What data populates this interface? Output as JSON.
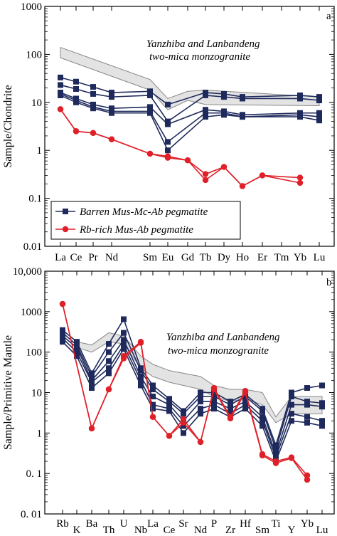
{
  "colors": {
    "barren": "#1f2a5c",
    "rb_rich": "#e02028",
    "field_fill": "#e3e3e3",
    "field_edge": "#888888"
  },
  "chart_data": [
    {
      "type": "line",
      "panel": "a",
      "scale": "log",
      "ylabel": "Sample/Chondrite",
      "ylim": [
        0.01,
        1000
      ],
      "yticks": [
        "0.01",
        "0.1",
        "1",
        "10",
        "100",
        "1000"
      ],
      "categories": [
        "La",
        "Ce",
        "Pr",
        "Nd",
        "Sm",
        "Eu",
        "Gd",
        "Tb",
        "Dy",
        "Ho",
        "Er",
        "Tm",
        "Yb",
        "Lu"
      ],
      "annotation": [
        "Yanzhiba  and Lanbandeng",
        "two-mica monzogranite"
      ],
      "legend": [
        {
          "name": "Barren Mus-Mc-Ab  pegmatite",
          "group": "barren"
        },
        {
          "name": "Rb-rich Mus-Ab pegmatite",
          "group": "rb_rich"
        }
      ],
      "field": {
        "x": [
          "La",
          "Sm",
          "Eu",
          "Gd",
          "Tb",
          "Lu"
        ],
        "upper": [
          140,
          30,
          12,
          17,
          18,
          13
        ],
        "lower": [
          85,
          18,
          7,
          11,
          9,
          8.5
        ]
      },
      "series": [
        {
          "group": "barren",
          "x": [
            "La",
            "Ce",
            "Pr",
            "Nd",
            "Sm",
            "Eu",
            "Tb",
            "Dy",
            "Ho",
            "Yb",
            "Lu"
          ],
          "values": [
            33,
            27,
            21,
            16,
            17,
            9,
            16,
            15,
            13,
            14,
            13
          ]
        },
        {
          "group": "barren",
          "x": [
            "La",
            "Ce",
            "Pr",
            "Nd",
            "Sm",
            "Eu",
            "Tb",
            "Dy",
            "Ho",
            "Yb",
            "Lu"
          ],
          "values": [
            23,
            19,
            15,
            13,
            14,
            4,
            14,
            13,
            12,
            12,
            11
          ]
        },
        {
          "group": "barren",
          "x": [
            "La",
            "Ce",
            "Pr",
            "Nd",
            "Sm",
            "Eu",
            "Tb",
            "Dy",
            "Ho",
            "Yb",
            "Lu"
          ],
          "values": [
            16,
            12,
            9,
            7.5,
            8,
            3.5,
            7,
            6.5,
            5.5,
            6,
            6
          ]
        },
        {
          "group": "barren",
          "x": [
            "La",
            "Ce",
            "Pr",
            "Nd",
            "Sm",
            "Eu",
            "Tb",
            "Dy",
            "Ho",
            "Yb",
            "Lu"
          ],
          "values": [
            15,
            11,
            8,
            6.5,
            6.5,
            1.5,
            6,
            6,
            5,
            5.5,
            5
          ]
        },
        {
          "group": "barren",
          "x": [
            "La",
            "Ce",
            "Pr",
            "Nd",
            "Sm",
            "Eu",
            "Tb",
            "Dy",
            "Ho",
            "Yb",
            "Lu"
          ],
          "values": [
            14,
            10,
            7.5,
            6,
            6,
            1,
            5,
            5.5,
            5,
            5,
            4.2
          ]
        },
        {
          "group": "rb_rich",
          "x": [
            "La",
            "Ce",
            "Pr",
            "Nd",
            "Sm",
            "Eu",
            "Gd",
            "Tb",
            "Dy",
            "Ho",
            "Er",
            "Yb"
          ],
          "values": [
            7.2,
            2.5,
            2.3,
            1.7,
            0.85,
            0.75,
            0.62,
            0.32,
            0.45,
            0.18,
            0.3,
            0.27
          ]
        },
        {
          "group": "rb_rich",
          "x": [
            "La",
            "Ce",
            "Pr",
            "Nd",
            "Sm",
            "Eu",
            "Gd",
            "Tb",
            "Dy",
            "Ho",
            "Er",
            "Yb"
          ],
          "values": [
            7.2,
            2.5,
            2.3,
            1.7,
            0.85,
            0.7,
            0.62,
            0.24,
            0.45,
            0.18,
            0.3,
            0.21
          ]
        }
      ]
    },
    {
      "type": "line",
      "panel": "b",
      "scale": "log",
      "ylabel": "Sample/Primitive Mantle",
      "ylim": [
        0.01,
        10000
      ],
      "yticks": [
        "0. 01",
        "0. 1",
        "1",
        "10",
        "100",
        "1000",
        "10,000"
      ],
      "categories": [
        "Rb",
        "K",
        "Ba",
        "Th",
        "U",
        "Nb",
        "La",
        "Ce",
        "Sr",
        "Nd",
        "P",
        "Zr",
        "Hf",
        "Sm",
        "Ti",
        "Y",
        "Yb",
        "Lu"
      ],
      "annotation": [
        "Yanzhiba  and Lanbandeng",
        "two-mica monzogranite"
      ],
      "field": {
        "x": [
          "K",
          "Ba",
          "Th",
          "U",
          "Nb",
          "La",
          "Ce",
          "Sr",
          "Nd",
          "P",
          "Zr",
          "Hf",
          "Sm",
          "Ti",
          "Y",
          "Lu"
        ],
        "upper": [
          180,
          150,
          300,
          250,
          80,
          50,
          35,
          30,
          25,
          15,
          12,
          12,
          10,
          2.5,
          8,
          8
        ],
        "lower": [
          130,
          100,
          180,
          160,
          40,
          25,
          18,
          15,
          12,
          8,
          6,
          7,
          5,
          1.8,
          3,
          3
        ]
      },
      "series": [
        {
          "group": "barren",
          "x": [
            "Rb",
            "K",
            "Ba",
            "Th",
            "U",
            "Nb",
            "La",
            "Ce",
            "Sr",
            "Nd",
            "P",
            "Zr",
            "Hf",
            "Sm",
            "Ti",
            "Y",
            "Yb",
            "Lu"
          ],
          "values": [
            350,
            180,
            30,
            160,
            650,
            40,
            15,
            7,
            3.5,
            10,
            10,
            6,
            9,
            4,
            0.5,
            10,
            13,
            15
          ]
        },
        {
          "group": "barren",
          "x": [
            "Rb",
            "K",
            "Ba",
            "Th",
            "U",
            "Nb",
            "La",
            "Ce",
            "Sr",
            "Nd",
            "P",
            "Zr",
            "Hf",
            "Sm",
            "Ti",
            "Y",
            "Yb",
            "Lu"
          ],
          "values": [
            300,
            150,
            25,
            100,
            300,
            35,
            12,
            6,
            3,
            8,
            8,
            5,
            8,
            3.5,
            0.4,
            8,
            6,
            5.5
          ]
        },
        {
          "group": "barren",
          "x": [
            "Rb",
            "K",
            "Ba",
            "Th",
            "U",
            "Nb",
            "La",
            "Ce",
            "Sr",
            "Nd",
            "P",
            "Zr",
            "Hf",
            "Sm",
            "Ti",
            "Y",
            "Yb",
            "Lu"
          ],
          "values": [
            250,
            130,
            20,
            60,
            200,
            25,
            8,
            5,
            2,
            6,
            6,
            4,
            6,
            2.5,
            0.3,
            5,
            5,
            4.5
          ]
        },
        {
          "group": "barren",
          "x": [
            "Rb",
            "K",
            "Ba",
            "Th",
            "U",
            "Nb",
            "La",
            "Ce",
            "Sr",
            "Nd",
            "P",
            "Zr",
            "Hf",
            "Sm",
            "Ti",
            "Y",
            "Yb",
            "Lu"
          ],
          "values": [
            220,
            100,
            18,
            40,
            150,
            20,
            5,
            4,
            1.5,
            4,
            5,
            3,
            5,
            2,
            0.25,
            3,
            2.5,
            2
          ]
        },
        {
          "group": "barren",
          "x": [
            "Rb",
            "K",
            "Ba",
            "Th",
            "U",
            "Nb",
            "La",
            "Ce",
            "Sr",
            "Nd",
            "P",
            "Zr",
            "Hf",
            "Sm",
            "Ti",
            "Y",
            "Yb",
            "Lu"
          ],
          "values": [
            180,
            80,
            13,
            30,
            120,
            15,
            4,
            3.5,
            1,
            3,
            4,
            2.5,
            4,
            1.5,
            0.2,
            2,
            1.8,
            1.5
          ]
        },
        {
          "group": "rb_rich",
          "x": [
            "Rb",
            "Ba",
            "Th",
            "U",
            "Nb",
            "La",
            "Ce",
            "Sr",
            "Nd",
            "P",
            "Zr",
            "Hf",
            "Sm",
            "Ti",
            "Y",
            "Yb"
          ],
          "values": [
            1550,
            1.3,
            12,
            80,
            180,
            2.5,
            0.85,
            2.2,
            0.6,
            13,
            2.5,
            11,
            0.3,
            0.2,
            0.25,
            0.09
          ]
        },
        {
          "group": "rb_rich",
          "x": [
            "Rb",
            "Ba",
            "Th",
            "U",
            "Nb",
            "La",
            "Ce",
            "Sr",
            "Nd",
            "P",
            "Zr",
            "Hf",
            "Sm",
            "Ti",
            "Y",
            "Yb"
          ],
          "values": [
            1550,
            1.3,
            12,
            70,
            170,
            2.5,
            0.85,
            1.8,
            0.6,
            12,
            2.3,
            10,
            0.28,
            0.18,
            0.24,
            0.07
          ]
        }
      ]
    }
  ]
}
